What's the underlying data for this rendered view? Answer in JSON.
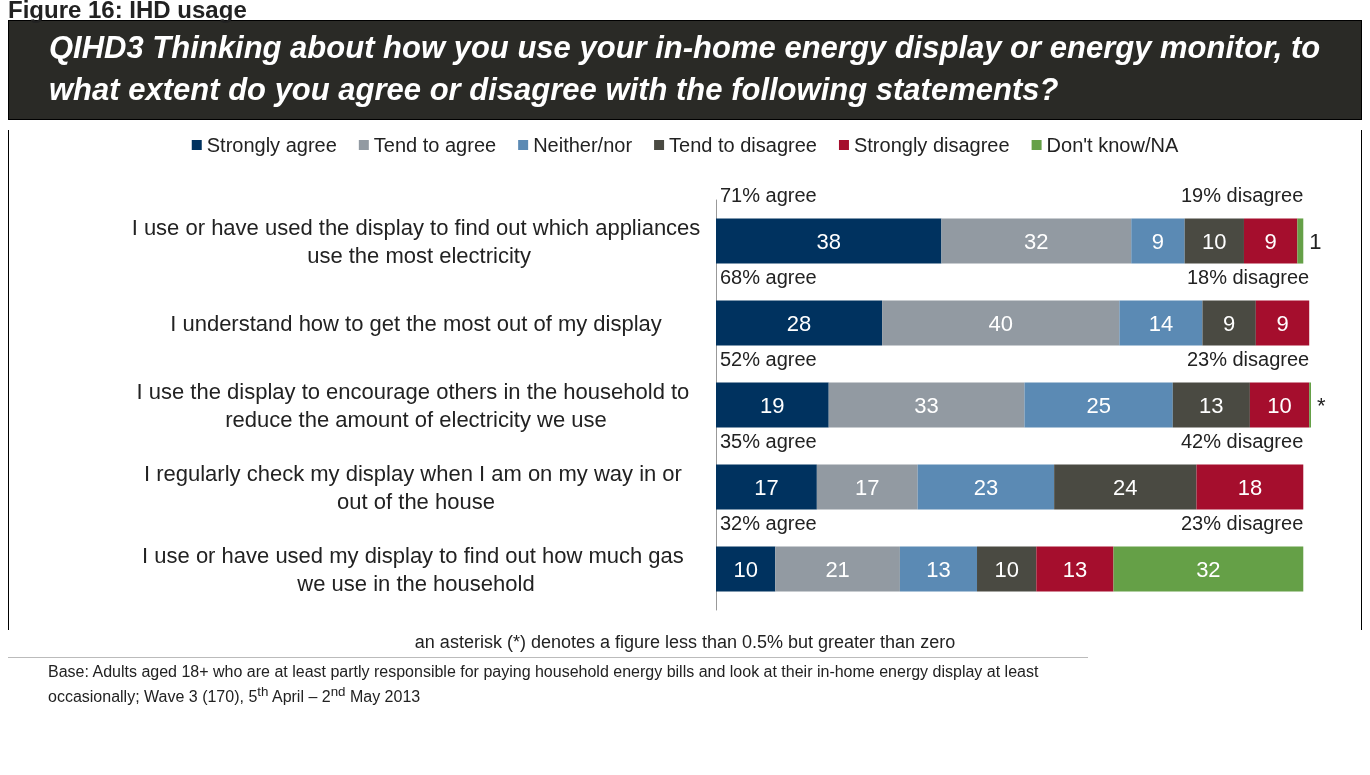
{
  "chart_data": {
    "type": "bar",
    "orientation": "horizontal",
    "stacked": true,
    "title": "Figure 16: IHD usage",
    "subtitle": "QIHD3   Thinking about how you use your in-home energy display or energy monitor, to what extent do you agree or disagree with the following statements?",
    "categories": [
      "I use or have used the display to find out which appliances use the most electricity",
      "I understand how to get the most out of my display",
      "I use the display to encourage others in the household to reduce the amount of electricity we use",
      "I regularly check my display when I am on my way in or out of the house",
      "I use or have used my display to find out how much gas we use in the household"
    ],
    "series": [
      {
        "name": "Strongly agree",
        "color": "#00325f",
        "values": [
          38,
          28,
          19,
          17,
          10
        ],
        "value_labels": [
          "38",
          "28",
          "19",
          "17",
          "10"
        ]
      },
      {
        "name": "Tend to agree",
        "color": "#929aa2",
        "values": [
          32,
          40,
          33,
          17,
          21
        ],
        "value_labels": [
          "32",
          "40",
          "33",
          "17",
          "21"
        ]
      },
      {
        "name": "Neither/nor",
        "color": "#5b8ab4",
        "values": [
          9,
          14,
          25,
          23,
          13
        ],
        "value_labels": [
          "9",
          "14",
          "25",
          "23",
          "13"
        ]
      },
      {
        "name": "Tend to disagree",
        "color": "#4a4a42",
        "values": [
          10,
          9,
          13,
          24,
          10
        ],
        "value_labels": [
          "10",
          "9",
          "13",
          "24",
          "10"
        ]
      },
      {
        "name": "Strongly disagree",
        "color": "#a50e2d",
        "values": [
          9,
          9,
          10,
          18,
          13
        ],
        "value_labels": [
          "9",
          "9",
          "10",
          "18",
          "13"
        ]
      },
      {
        "name": "Don't know/NA",
        "color": "#65a047",
        "values": [
          1,
          null,
          0.3,
          null,
          32
        ],
        "value_labels": [
          "1",
          null,
          "*",
          null,
          "32"
        ]
      }
    ],
    "legend": "top",
    "annotations": [
      {
        "text": "71% agree",
        "x": 0,
        "y": "I use or have used the display to find out which appliances use the most electricity"
      },
      {
        "text": "19% disagree",
        "x": 99,
        "y": "I use or have used the display to find out which appliances use the most electricity"
      },
      {
        "text": "68% agree",
        "x": 0,
        "y": "I understand how to get the most out of my display"
      },
      {
        "text": "18% disagree",
        "x": 100,
        "y": "I understand how to get the most out of my display"
      },
      {
        "text": "52% agree",
        "x": 0,
        "y": "I use the display to encourage others in the household to reduce the amount of electricity we use"
      },
      {
        "text": "23% disagree",
        "x": 100,
        "y": "I use the display to encourage others in the household to reduce the amount of electricity we use"
      },
      {
        "text": "35% agree",
        "x": 0,
        "y": "I regularly check my display when I am on my way in or out of the house"
      },
      {
        "text": "42% disagree",
        "x": 99,
        "y": "I regularly check my display when I am on my way in or out of the house"
      },
      {
        "text": "32% agree",
        "x": 0,
        "y": "I use or have used my display to find out how much gas we use in the household"
      },
      {
        "text": "23% disagree",
        "x": 99,
        "y": "I use or have used my display to find out how much gas we use in the household"
      },
      "an asterisk (*) denotes a figure less than 0.5% but greater than zero",
      "Base:  Adults aged 18+ who are at least partly responsible for paying household energy bills and look at their in-home energy display at least occasionally; Wave 3 (170), 5$^{th}$ April – 2$^{nd}$ May 2013"
    ]
  }
}
